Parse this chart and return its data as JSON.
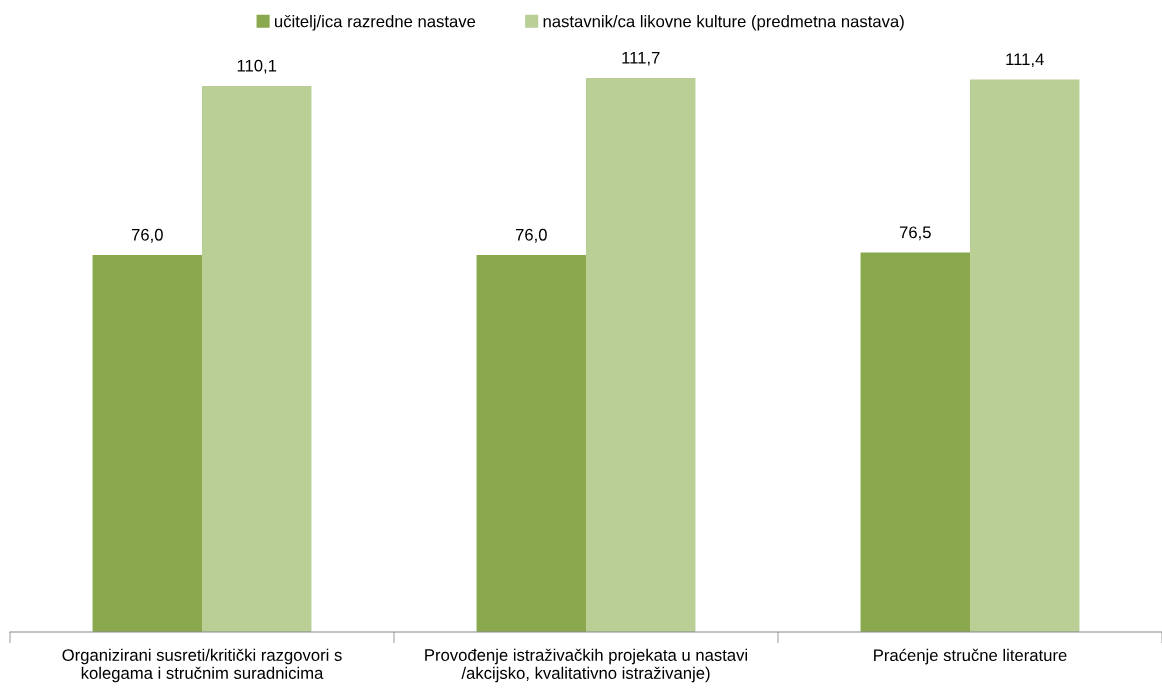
{
  "chart_data": {
    "type": "bar",
    "categories": [
      "Organizirani susreti/kritički razgovori s\nkolegama i stručnim suradnicima",
      "Provođenje istraživačkih projekata u nastavi\n/akcijsko, kvalitativno istraživanje)",
      "Praćenje stručne literature"
    ],
    "series": [
      {
        "name": "učitelj/ica razredne nastave",
        "color": "#8aa84e",
        "values": [
          76.0,
          76.0,
          76.5
        ],
        "value_labels": [
          "76,0",
          "76,0",
          "76,5"
        ]
      },
      {
        "name": "nastavnik/ca likovne kulture (predmetna nastava)",
        "color": "#b9cf96",
        "values": [
          110.1,
          111.7,
          111.4
        ],
        "value_labels": [
          "110,1",
          "111,7",
          "111,4"
        ]
      }
    ],
    "legend": "top",
    "grid": false,
    "tick_labels": "x"
  }
}
